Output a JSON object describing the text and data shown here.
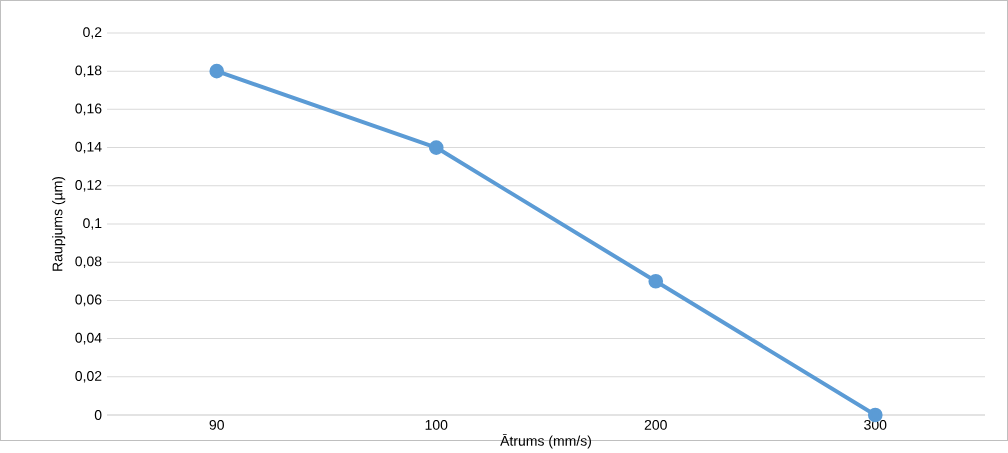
{
  "chart_data": {
    "type": "line",
    "xlabel": "Ātrums (mm/s)",
    "ylabel": "Raupjums (µm)",
    "categories": [
      "90",
      "100",
      "200",
      "300"
    ],
    "values": [
      0.18,
      0.14,
      0.07,
      0
    ],
    "color": "#5b9bd5",
    "ylim": [
      0,
      0.2
    ],
    "yticks": [
      {
        "value": 0,
        "label": "0"
      },
      {
        "value": 0.02,
        "label": "0,02"
      },
      {
        "value": 0.04,
        "label": "0,04"
      },
      {
        "value": 0.06,
        "label": "0,06"
      },
      {
        "value": 0.08,
        "label": "0,08"
      },
      {
        "value": 0.1,
        "label": "0,1"
      },
      {
        "value": 0.12,
        "label": "0,12"
      },
      {
        "value": 0.14,
        "label": "0,14"
      },
      {
        "value": 0.16,
        "label": "0,16"
      },
      {
        "value": 0.18,
        "label": "0,18"
      },
      {
        "value": 0.2,
        "label": "0,2"
      }
    ],
    "grid": "y",
    "marker": "circle",
    "line_style": "solid"
  }
}
